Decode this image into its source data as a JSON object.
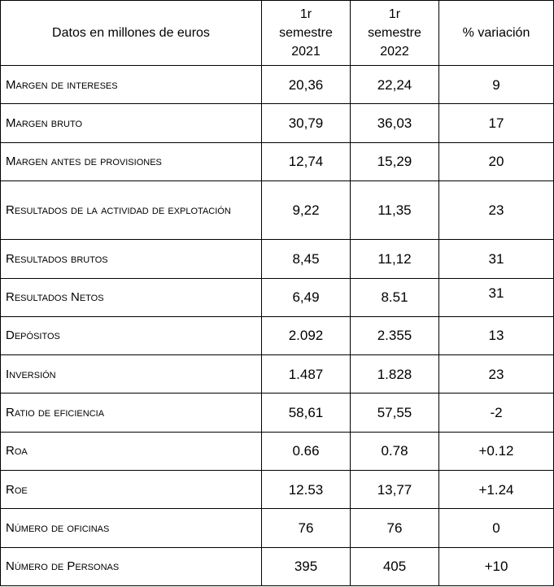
{
  "header": {
    "col_label": "Datos en millones de euros",
    "col_2021": "1r semestre 2021",
    "col_2022": "1r semestre 2022",
    "col_var": "% variación"
  },
  "rows": [
    {
      "label": "Margen de intereses",
      "v2021": "20,36",
      "v2022": "22,24",
      "var": "9"
    },
    {
      "label": "Margen bruto",
      "v2021": "30,79",
      "v2022": "36,03",
      "var": "17"
    },
    {
      "label": "Margen antes de provisiones",
      "v2021": "12,74",
      "v2022": "15,29",
      "var": "20"
    },
    {
      "label": "Resultados de la actividad de explotación",
      "v2021": "9,22",
      "v2022": "11,35",
      "var": "23"
    },
    {
      "label": "Resultados brutos",
      "v2021": "8,45",
      "v2022": "11,12",
      "var": "31"
    },
    {
      "label": "Resultados Netos",
      "v2021": "6,49",
      "v2022": "8.51",
      "var": "31"
    },
    {
      "label": "Depósitos",
      "v2021": "2.092",
      "v2022": "2.355",
      "var": "13"
    },
    {
      "label": "Inversión",
      "v2021": "1.487",
      "v2022": "1.828",
      "var": "23"
    },
    {
      "label": "Ratio de eficiencia",
      "v2021": "58,61",
      "v2022": "57,55",
      "var": "-2"
    },
    {
      "label": "Roa",
      "v2021": "0.66",
      "v2022": "0.78",
      "var": "+0.12"
    },
    {
      "label": "Roe",
      "v2021": "12.53",
      "v2022": "13,77",
      "var": "+1.24"
    },
    {
      "label": "Número de oficinas",
      "v2021": "76",
      "v2022": "76",
      "var": "0"
    },
    {
      "label": "Número de Personas",
      "v2021": "395",
      "v2022": "405",
      "var": "+10"
    }
  ]
}
